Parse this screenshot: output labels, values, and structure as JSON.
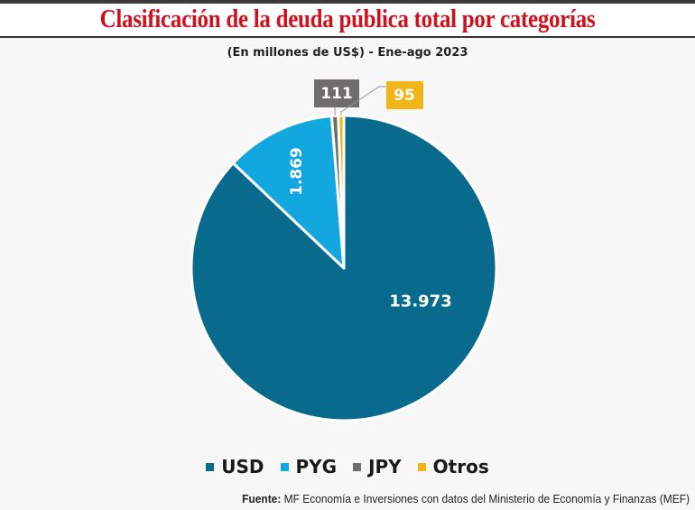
{
  "header": {
    "title": "Clasificación de la deuda pública total por categorías",
    "subtitle": "(En millones de US$) - Ene-ago 2023"
  },
  "chart_data": {
    "type": "pie",
    "title": "Clasificación de la deuda pública total por categorías",
    "subtitle": "(En millones de US$) - Ene-ago 2023",
    "categories": [
      "USD",
      "PYG",
      "JPY",
      "Otros"
    ],
    "values": [
      13973,
      1869,
      111,
      95
    ],
    "labels": [
      "13.973",
      "1.869",
      "111",
      "95"
    ],
    "colors": [
      "#086a8d",
      "#12a7df",
      "#6f6c6c",
      "#f2b519"
    ],
    "start": "12 o'clock",
    "direction": "clockwise",
    "legend_placement": "bottom"
  },
  "legend": [
    {
      "label": "USD",
      "color": "#086a8d"
    },
    {
      "label": "PYG",
      "color": "#12a7df"
    },
    {
      "label": "JPY",
      "color": "#6f6c6c"
    },
    {
      "label": "Otros",
      "color": "#f2b519"
    }
  ],
  "source": {
    "label": "Fuente:",
    "text": " MF Economía e Inversiones con datos del Ministerio de Economía y Finanzas (MEF)"
  }
}
